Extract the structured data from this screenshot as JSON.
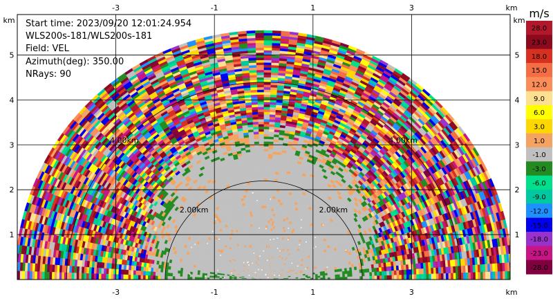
{
  "info_panel": {
    "start_time": "Start time: 2023/09/20 12:01:24.954",
    "instrument": "WLS200s-181/WLS200s-181",
    "field": "Field: VEL",
    "azimuth": "Azimuth(deg): 350.00",
    "nrays": "NRays: 90"
  },
  "chart_data": {
    "type": "heatmap",
    "plot_kind": "RHI radar scan (polar range-height display)",
    "x_axis": {
      "unit": "km",
      "ticks": [
        -3,
        -1,
        1,
        3
      ],
      "range": [
        -5.0,
        5.0
      ]
    },
    "y_axis": {
      "unit": "km",
      "ticks": [
        1,
        2,
        3,
        4,
        5
      ],
      "range": [
        0,
        5.9
      ]
    },
    "max_range_km": 5.05,
    "range_rings": [
      {
        "radius_km": 2.0,
        "label": "2.00km"
      },
      {
        "radius_km": 4.0,
        "label": "4.00km"
      }
    ],
    "grid": true,
    "colorbar": {
      "unit": "m/s",
      "labels": [
        "28.0",
        "23.0",
        "18.0",
        "15.0",
        "12.0",
        "9.0",
        "6.0",
        "3.0",
        "1.0",
        "-1.0",
        "-3.0",
        "-6.0",
        "-9.0",
        "-12.0",
        "-15.0",
        "-18.0",
        "-23.0",
        "-28.0"
      ],
      "colors": [
        "#b2182b",
        "#8b0a1e",
        "#d7301f",
        "#f46d43",
        "#fc8d59",
        "#fee090",
        "#ffff00",
        "#ffd700",
        "#f4a460",
        "#c0c0c0",
        "#228b22",
        "#00e08a",
        "#00c8a0",
        "#1e90ff",
        "#0000ee",
        "#9932cc",
        "#c71585",
        "#800040"
      ]
    },
    "data_description": {
      "center_region": "near zero velocity (gray) with scattered light dots",
      "inner_edges": "green and orange low-velocity bands",
      "outer_region": "noisy multicolored velocities beyond about 2.0-2.5 km range"
    }
  },
  "colors": {
    "gray_fill": "#c0c0c0",
    "green_band": "#228b22",
    "orange_band": "#f4a460"
  }
}
